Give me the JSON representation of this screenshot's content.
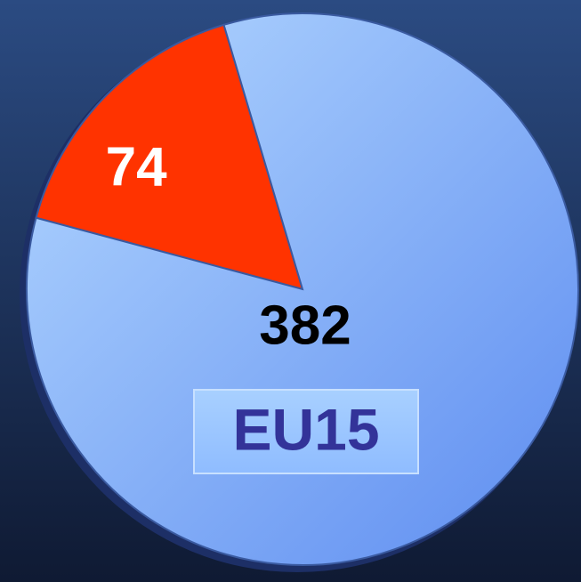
{
  "chart_data": {
    "type": "pie",
    "categories": [
      null,
      "EU15"
    ],
    "values": [
      74,
      382
    ],
    "colors": [
      "#ff3300",
      "#86b4ff"
    ],
    "label_colors": [
      "#ffffff",
      "#000000"
    ]
  }
}
